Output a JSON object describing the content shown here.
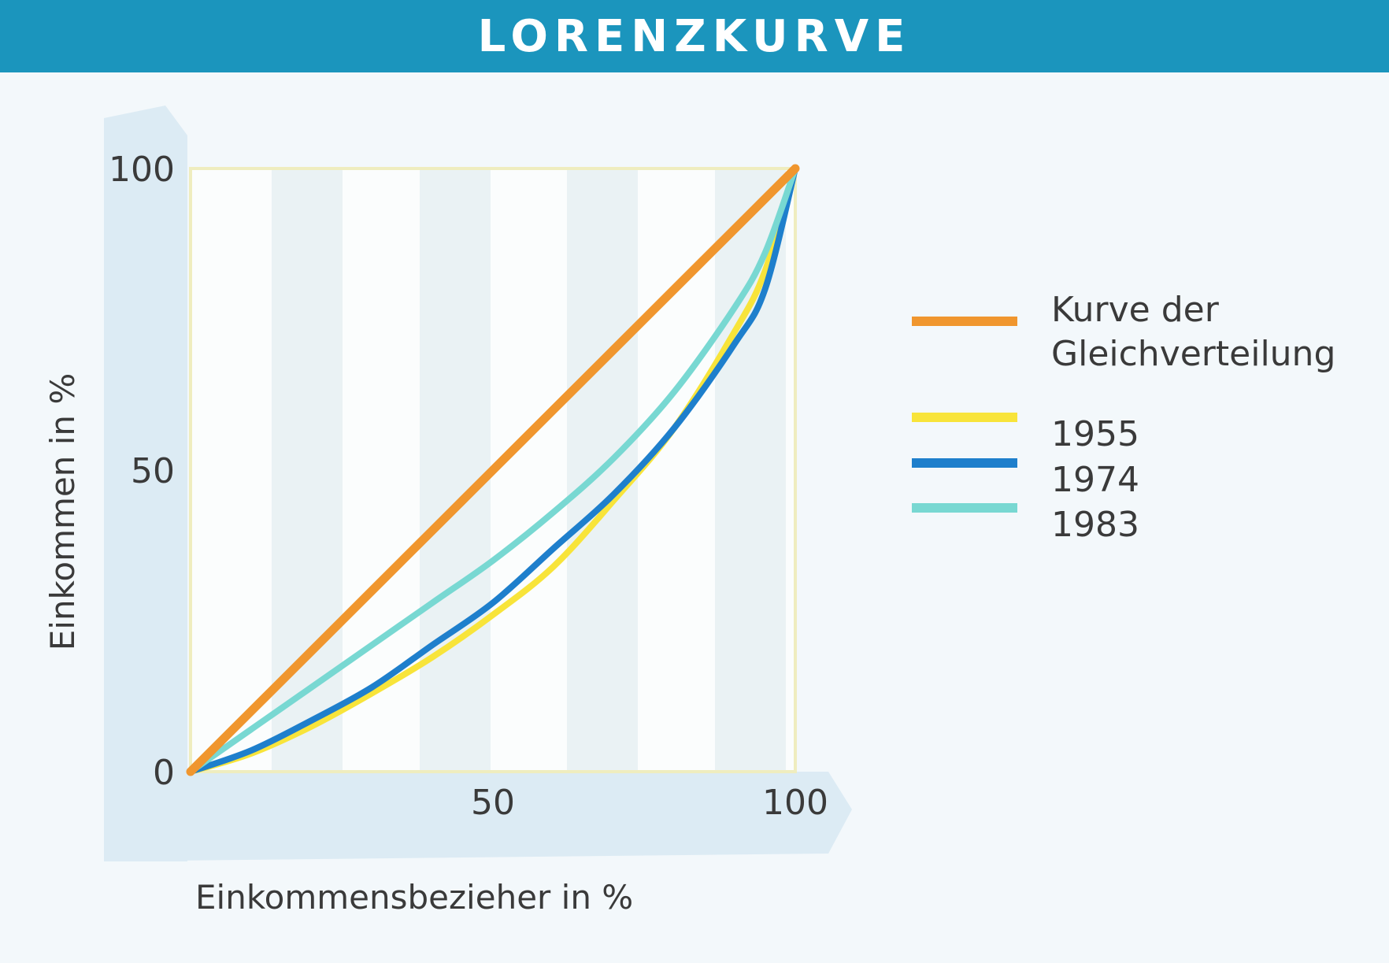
{
  "header": {
    "title": "LORENZKURVE"
  },
  "colors": {
    "header_bg": "#1b95bd",
    "equality": "#f0962e",
    "y1955": "#f8e43a",
    "y1974": "#1e7fcc",
    "y1983": "#78d8d2",
    "axis_band": "#dcebf4",
    "plot_border": "#efedbf"
  },
  "chart_data": {
    "type": "line",
    "xlabel": "Einkommensbezieher in %",
    "ylabel": "Einkommen in %",
    "xlim": [
      0,
      100
    ],
    "ylim": [
      0,
      100
    ],
    "xticks": [
      "50",
      "100"
    ],
    "yticks": [
      "0",
      "50",
      "100"
    ],
    "legend_position": "right",
    "series": [
      {
        "name": "Kurve der Gleichverteilung",
        "name_lines": [
          "Kurve der",
          "Gleichverteilung"
        ],
        "color": "#f0962e",
        "points": [
          [
            0,
            0
          ],
          [
            10,
            10
          ],
          [
            20,
            20
          ],
          [
            30,
            30
          ],
          [
            40,
            40
          ],
          [
            50,
            50
          ],
          [
            60,
            60
          ],
          [
            70,
            70
          ],
          [
            80,
            80
          ],
          [
            90,
            90
          ],
          [
            100,
            100
          ]
        ]
      },
      {
        "name": "1955",
        "name_lines": [
          "1955"
        ],
        "color": "#f8e43a",
        "points": [
          [
            0,
            0
          ],
          [
            10,
            3
          ],
          [
            20,
            7.5
          ],
          [
            30,
            13
          ],
          [
            40,
            19
          ],
          [
            50,
            26
          ],
          [
            60,
            34
          ],
          [
            70,
            45
          ],
          [
            80,
            57
          ],
          [
            90,
            73
          ],
          [
            95,
            83
          ],
          [
            100,
            100
          ]
        ]
      },
      {
        "name": "1974",
        "name_lines": [
          "1974"
        ],
        "color": "#1e7fcc",
        "points": [
          [
            0,
            0
          ],
          [
            10,
            3.5
          ],
          [
            20,
            8.5
          ],
          [
            30,
            14
          ],
          [
            40,
            21
          ],
          [
            50,
            28
          ],
          [
            60,
            37
          ],
          [
            70,
            46
          ],
          [
            80,
            57
          ],
          [
            90,
            71
          ],
          [
            95,
            80
          ],
          [
            100,
            100
          ]
        ]
      },
      {
        "name": "1983",
        "name_lines": [
          "1983"
        ],
        "color": "#78d8d2",
        "points": [
          [
            0,
            0
          ],
          [
            10,
            7
          ],
          [
            20,
            14
          ],
          [
            30,
            21
          ],
          [
            40,
            28
          ],
          [
            50,
            35
          ],
          [
            60,
            43
          ],
          [
            70,
            52
          ],
          [
            80,
            63
          ],
          [
            90,
            77
          ],
          [
            95,
            86
          ],
          [
            100,
            100
          ]
        ]
      }
    ]
  }
}
